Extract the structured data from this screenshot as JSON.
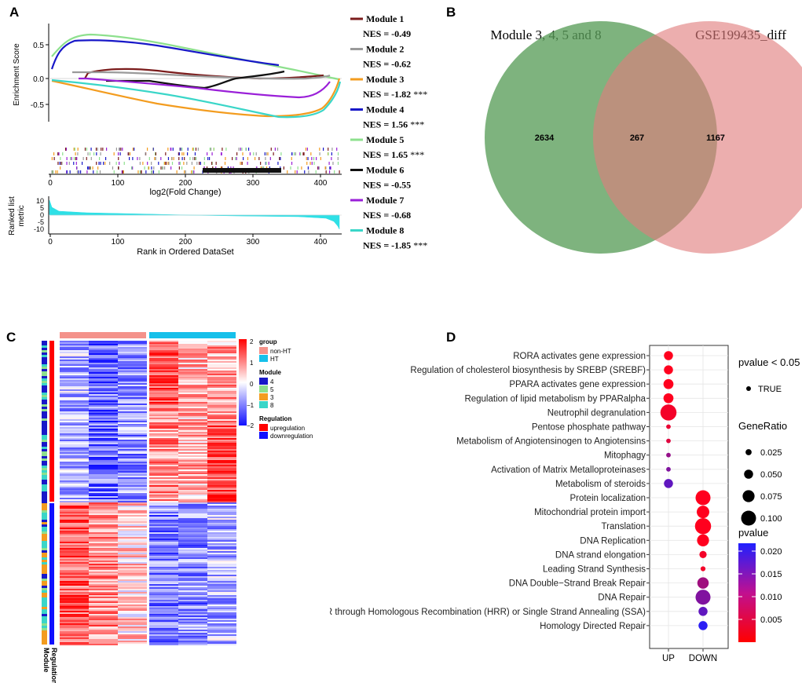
{
  "panels": {
    "a": "A",
    "b": "B",
    "c": "C",
    "d": "D"
  },
  "gsea": {
    "y_label": "Enrichment Score",
    "x_label_top": "log2(Fold Change)",
    "y_label_bottom": [
      "Ranked list",
      "metric"
    ],
    "x_label_bottom": "Rank in Ordered DataSet",
    "es_ticks": [
      "0.5",
      "0.0",
      "-0.5"
    ],
    "x_ticks": [
      "0",
      "100",
      "200",
      "300",
      "400"
    ],
    "metric_ticks": [
      "10",
      "5",
      "0",
      "-5",
      "-10"
    ],
    "modules": [
      {
        "name": "Module 1",
        "nes": "NES = -0.49",
        "stars": "",
        "color": "#7b1c1c"
      },
      {
        "name": "Module 2",
        "nes": "NES = -0.62",
        "stars": "",
        "color": "#9a9a9a"
      },
      {
        "name": "Module 3",
        "nes": "NES = -1.82",
        "stars": "***",
        "color": "#f39c1f"
      },
      {
        "name": "Module 4",
        "nes": "NES = 1.56",
        "stars": "***",
        "color": "#1818c8"
      },
      {
        "name": "Module 5",
        "nes": "NES = 1.65",
        "stars": "***",
        "color": "#8de08d"
      },
      {
        "name": "Module 6",
        "nes": "NES = -0.55",
        "stars": "",
        "color": "#111111"
      },
      {
        "name": "Module 7",
        "nes": "NES = -0.68",
        "stars": "",
        "color": "#9a1fd8"
      },
      {
        "name": "Module 8",
        "nes": "NES = -1.85",
        "stars": "***",
        "color": "#3ad6c8"
      }
    ]
  },
  "venn": {
    "left_title": "Module 3, 4, 5 and 8",
    "right_title": "GSE199435_diff",
    "left_only": "2634",
    "overlap": "267",
    "right_only": "1167"
  },
  "heatmap": {
    "legend_title_group": "group",
    "groups": [
      "non-HT",
      "HT"
    ],
    "legend_title_module": "Module",
    "modules": [
      "4",
      "5",
      "3",
      "8"
    ],
    "legend_title_regulation": "Regulation",
    "regulation": [
      "upregulation",
      "downregulation"
    ],
    "scale_ticks": [
      "2",
      "1",
      "0",
      "−1",
      "−2"
    ],
    "row_labels": [
      "Regulation",
      "Module"
    ]
  },
  "chart_data": {
    "type": "scatter",
    "title": "",
    "x_categories": [
      "UP",
      "DOWN"
    ],
    "terms": [
      "RORA activates gene expression",
      "Regulation of cholesterol biosynthesis by SREBP (SREBF)",
      "PPARA activates gene expression",
      "Regulation of lipid metabolism by PPARalpha",
      "Neutrophil degranulation",
      "Pentose phosphate pathway",
      "Metabolism of Angiotensinogen to Angiotensins",
      "Mitophagy",
      "Activation of Matrix Metalloproteinases",
      "Metabolism of steroids",
      "Protein localization",
      "Mitochondrial protein import",
      "Translation",
      "DNA Replication",
      "DNA strand elongation",
      "Leading Strand Synthesis",
      "DNA Double−Strand Break Repair",
      "DNA Repair",
      "HDR through Homologous Recombination (HRR) or Single Strand Annealing (SSA)",
      "Homology Directed Repair"
    ],
    "points": [
      {
        "term": 0,
        "group": "UP",
        "gene_ratio": 0.05,
        "pvalue": 0.001
      },
      {
        "term": 1,
        "group": "UP",
        "gene_ratio": 0.05,
        "pvalue": 0.001
      },
      {
        "term": 2,
        "group": "UP",
        "gene_ratio": 0.058,
        "pvalue": 0.001
      },
      {
        "term": 3,
        "group": "UP",
        "gene_ratio": 0.058,
        "pvalue": 0.001
      },
      {
        "term": 4,
        "group": "UP",
        "gene_ratio": 0.11,
        "pvalue": 0.002
      },
      {
        "term": 5,
        "group": "UP",
        "gene_ratio": 0.012,
        "pvalue": 0.003
      },
      {
        "term": 6,
        "group": "UP",
        "gene_ratio": 0.012,
        "pvalue": 0.004
      },
      {
        "term": 7,
        "group": "UP",
        "gene_ratio": 0.012,
        "pvalue": 0.011
      },
      {
        "term": 8,
        "group": "UP",
        "gene_ratio": 0.012,
        "pvalue": 0.013
      },
      {
        "term": 9,
        "group": "UP",
        "gene_ratio": 0.05,
        "pvalue": 0.016
      },
      {
        "term": 10,
        "group": "DOWN",
        "gene_ratio": 0.1,
        "pvalue": 0.001
      },
      {
        "term": 11,
        "group": "DOWN",
        "gene_ratio": 0.08,
        "pvalue": 0.001
      },
      {
        "term": 12,
        "group": "DOWN",
        "gene_ratio": 0.11,
        "pvalue": 0.001
      },
      {
        "term": 13,
        "group": "DOWN",
        "gene_ratio": 0.075,
        "pvalue": 0.001
      },
      {
        "term": 14,
        "group": "DOWN",
        "gene_ratio": 0.035,
        "pvalue": 0.002
      },
      {
        "term": 15,
        "group": "DOWN",
        "gene_ratio": 0.015,
        "pvalue": 0.002
      },
      {
        "term": 16,
        "group": "DOWN",
        "gene_ratio": 0.07,
        "pvalue": 0.01
      },
      {
        "term": 17,
        "group": "DOWN",
        "gene_ratio": 0.1,
        "pvalue": 0.013
      },
      {
        "term": 18,
        "group": "DOWN",
        "gene_ratio": 0.05,
        "pvalue": 0.016
      },
      {
        "term": 19,
        "group": "DOWN",
        "gene_ratio": 0.05,
        "pvalue": 0.021
      }
    ],
    "legend_pvalue_filter": {
      "title": "pvalue < 0.05",
      "label": "TRUE"
    },
    "legend_gene_ratio": {
      "title": "GeneRatio",
      "values": [
        "0.025",
        "0.050",
        "0.075",
        "0.100"
      ]
    },
    "legend_pvalue": {
      "title": "pvalue",
      "ticks": [
        "0.020",
        "0.015",
        "0.010",
        "0.005"
      ],
      "low_color": "#ff0000",
      "high_color": "#2020ff"
    }
  }
}
